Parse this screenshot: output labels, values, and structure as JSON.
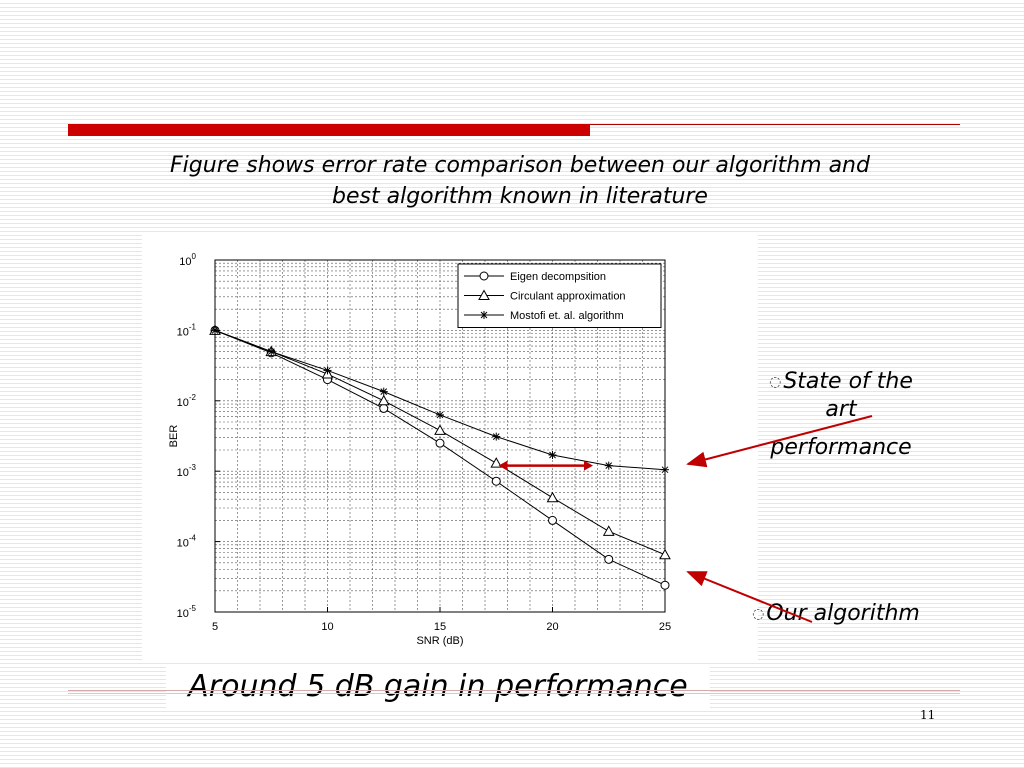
{
  "slide": {
    "caption_line1": "Figure shows error rate comparison between our algorithm and",
    "caption_line2": "best algorithm known in literature",
    "label_state_line1": "State of the",
    "label_state_line2": "art",
    "label_state_line3": "performance",
    "label_ours": "Our algorithm",
    "gain_note": "Around 5 dB gain in performance",
    "slide_number": "11",
    "bullet_icon": "◌"
  },
  "colors": {
    "accent_red": "#cc0000",
    "arrow_red": "#c00000"
  },
  "chart_data": {
    "type": "line",
    "xlabel": "SNR (dB)",
    "ylabel": "BER",
    "xlim": [
      5,
      25
    ],
    "ylim": [
      1e-05,
      1
    ],
    "yscale": "log",
    "grid": true,
    "legend_position": "top-right",
    "xticks": [
      5,
      10,
      15,
      20,
      25
    ],
    "yticks": [
      {
        "base": "10",
        "exp": "0"
      },
      {
        "base": "10",
        "exp": "-1"
      },
      {
        "base": "10",
        "exp": "-2"
      },
      {
        "base": "10",
        "exp": "-3"
      },
      {
        "base": "10",
        "exp": "-4"
      },
      {
        "base": "10",
        "exp": "-5"
      }
    ],
    "series": [
      {
        "name": "Eigen decompsition",
        "marker": "circle",
        "x": [
          5,
          7.5,
          10,
          12.5,
          15,
          17.5,
          20,
          22.5,
          25
        ],
        "y": [
          0.1,
          0.048,
          0.02,
          0.0078,
          0.0025,
          0.00072,
          0.0002,
          5.6e-05,
          2.4e-05
        ]
      },
      {
        "name": "Circulant approximation",
        "marker": "triangle",
        "x": [
          5,
          7.5,
          10,
          12.5,
          15,
          17.5,
          20,
          22.5,
          25
        ],
        "y": [
          0.1,
          0.05,
          0.024,
          0.01,
          0.0038,
          0.0013,
          0.00042,
          0.00014,
          6.5e-05
        ]
      },
      {
        "name": "Mostofi et. al. algorithm",
        "marker": "star",
        "x": [
          5,
          7.5,
          10,
          12.5,
          15,
          17.5,
          20,
          22.5,
          25
        ],
        "y": [
          0.1,
          0.05,
          0.027,
          0.0135,
          0.0063,
          0.0031,
          0.0017,
          0.0012,
          0.00105
        ]
      }
    ],
    "annotation": {
      "type": "double-arrow",
      "y": 0.0012,
      "x_from": 17.6,
      "x_to": 21.8
    }
  }
}
